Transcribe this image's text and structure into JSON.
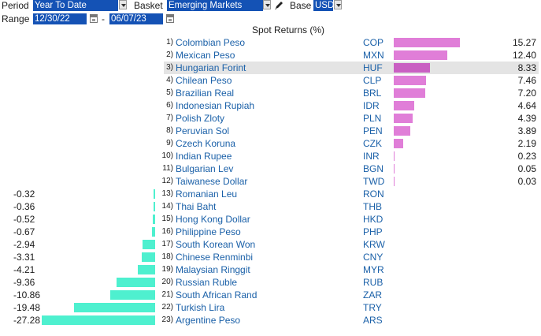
{
  "controls": {
    "period_label": "Period",
    "period_value": "Year To Date",
    "basket_label": "Basket",
    "basket_value": "Emerging Markets",
    "base_label": "Base",
    "base_value": "USD",
    "range_label": "Range",
    "range_start": "12/30/22",
    "range_sep": "-",
    "range_end": "06/07/23"
  },
  "colors": {
    "positive_bar": "#e07ed8",
    "negative_bar": "#4ef0cf",
    "dropdown_bg": "#1452b5",
    "link_text": "#1a60a8"
  },
  "chart_data": {
    "type": "bar",
    "title": "Spot Returns (%)",
    "highlighted_rank": 3,
    "rows": [
      {
        "rank": "1)",
        "name": "Colombian Peso",
        "code": "COP",
        "value": 15.27,
        "label": "15.27"
      },
      {
        "rank": "2)",
        "name": "Mexican Peso",
        "code": "MXN",
        "value": 12.4,
        "label": "12.40"
      },
      {
        "rank": "3)",
        "name": "Hungarian Forint",
        "code": "HUF",
        "value": 8.33,
        "label": "8.33"
      },
      {
        "rank": "4)",
        "name": "Chilean Peso",
        "code": "CLP",
        "value": 7.46,
        "label": "7.46"
      },
      {
        "rank": "5)",
        "name": "Brazilian Real",
        "code": "BRL",
        "value": 7.2,
        "label": "7.20"
      },
      {
        "rank": "6)",
        "name": "Indonesian Rupiah",
        "code": "IDR",
        "value": 4.64,
        "label": "4.64"
      },
      {
        "rank": "7)",
        "name": "Polish Zloty",
        "code": "PLN",
        "value": 4.39,
        "label": "4.39"
      },
      {
        "rank": "8)",
        "name": "Peruvian Sol",
        "code": "PEN",
        "value": 3.89,
        "label": "3.89"
      },
      {
        "rank": "9)",
        "name": "Czech Koruna",
        "code": "CZK",
        "value": 2.19,
        "label": "2.19"
      },
      {
        "rank": "10)",
        "name": "Indian Rupee",
        "code": "INR",
        "value": 0.23,
        "label": "0.23"
      },
      {
        "rank": "11)",
        "name": "Bulgarian Lev",
        "code": "BGN",
        "value": 0.05,
        "label": "0.05"
      },
      {
        "rank": "12)",
        "name": "Taiwanese Dollar",
        "code": "TWD",
        "value": 0.03,
        "label": "0.03"
      },
      {
        "rank": "13)",
        "name": "Romanian Leu",
        "code": "RON",
        "value": -0.32,
        "label": "-0.32"
      },
      {
        "rank": "14)",
        "name": "Thai Baht",
        "code": "THB",
        "value": -0.36,
        "label": "-0.36"
      },
      {
        "rank": "15)",
        "name": "Hong Kong Dollar",
        "code": "HKD",
        "value": -0.52,
        "label": "-0.52"
      },
      {
        "rank": "16)",
        "name": "Philippine Peso",
        "code": "PHP",
        "value": -0.67,
        "label": "-0.67"
      },
      {
        "rank": "17)",
        "name": "South Korean Won",
        "code": "KRW",
        "value": -2.94,
        "label": "-2.94"
      },
      {
        "rank": "18)",
        "name": "Chinese Renminbi",
        "code": "CNY",
        "value": -3.31,
        "label": "-3.31"
      },
      {
        "rank": "19)",
        "name": "Malaysian Ringgit",
        "code": "MYR",
        "value": -4.21,
        "label": "-4.21"
      },
      {
        "rank": "20)",
        "name": "Russian Ruble",
        "code": "RUB",
        "value": -9.36,
        "label": "-9.36"
      },
      {
        "rank": "21)",
        "name": "South African Rand",
        "code": "ZAR",
        "value": -10.86,
        "label": "-10.86"
      },
      {
        "rank": "22)",
        "name": "Turkish Lira",
        "code": "TRY",
        "value": -19.48,
        "label": "-19.48"
      },
      {
        "rank": "23)",
        "name": "Argentine Peso",
        "code": "ARS",
        "value": -27.28,
        "label": "-27.28"
      }
    ]
  }
}
